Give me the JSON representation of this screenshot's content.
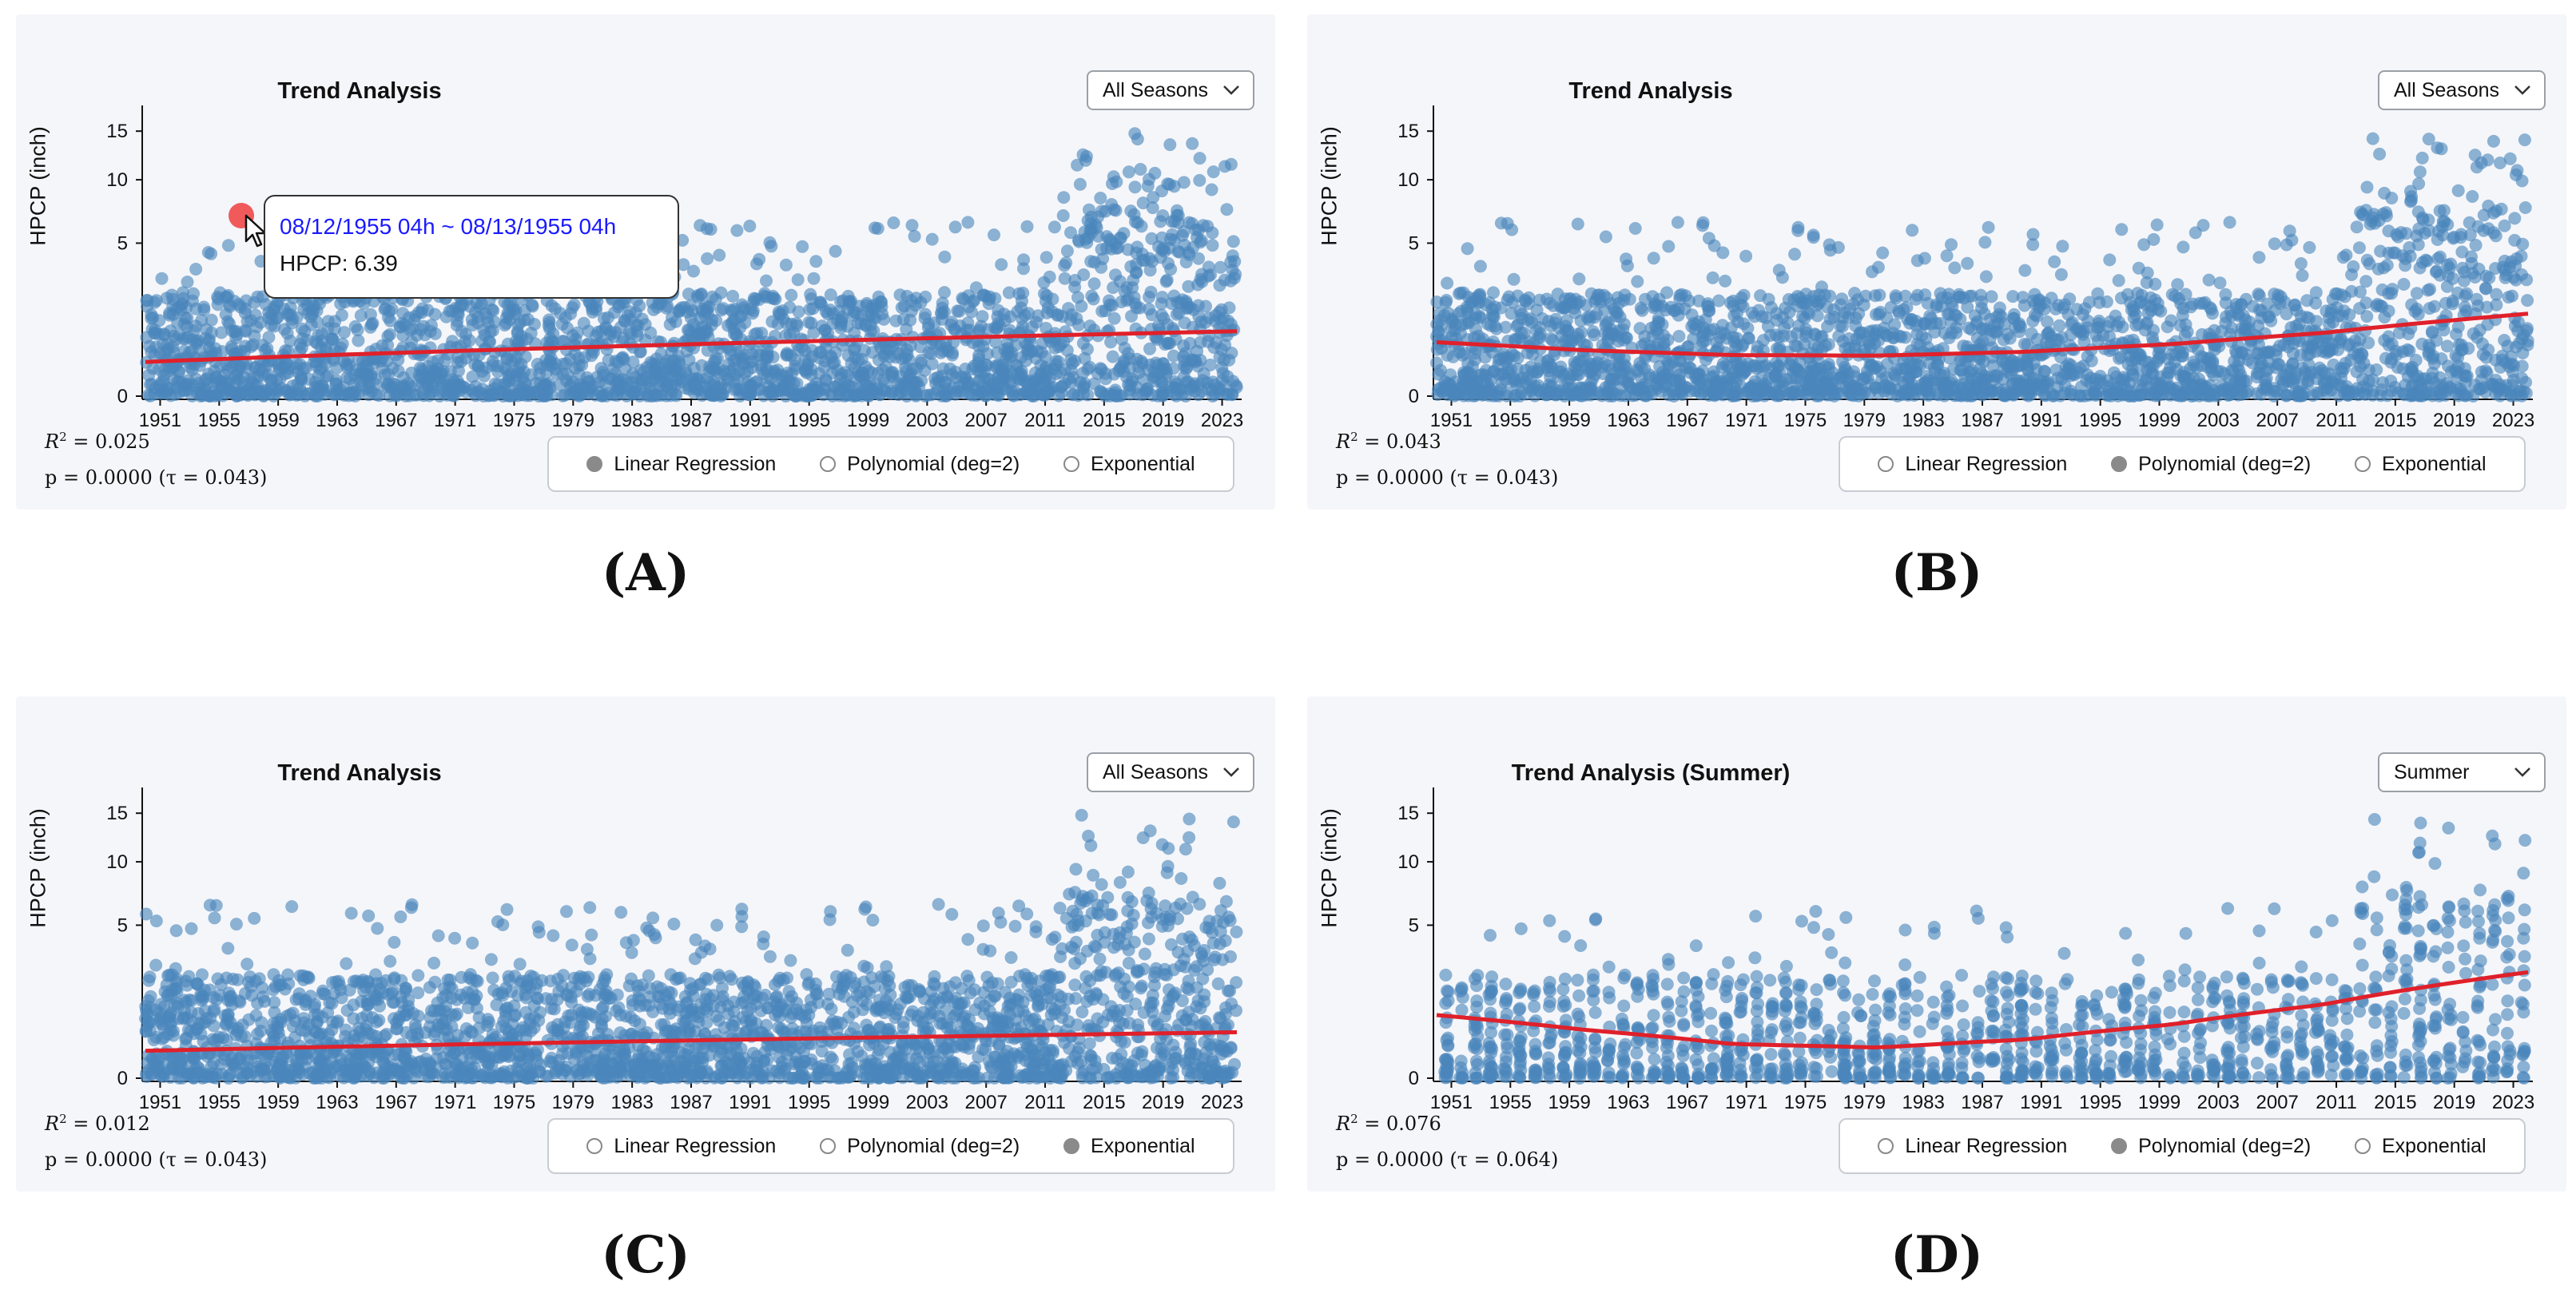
{
  "panels": [
    {
      "caption": "(A)",
      "title": "Trend Analysis",
      "season": "All Seasons",
      "y_label": "HPCP (inch)",
      "r2": "0.025",
      "p_text": "p = 0.0000 (τ = 0.043)",
      "models": [
        {
          "label": "Linear Regression",
          "selected": true
        },
        {
          "label": "Polynomial (deg=2)",
          "selected": false
        },
        {
          "label": "Exponential",
          "selected": false
        }
      ],
      "tooltip": {
        "date": "08/12/1955 04h ~ 08/13/1955 04h",
        "value": "HPCP: 6.39"
      }
    },
    {
      "caption": "(B)",
      "title": "Trend Analysis",
      "season": "All Seasons",
      "y_label": "HPCP (inch)",
      "r2": "0.043",
      "p_text": "p = 0.0000 (τ = 0.043)",
      "models": [
        {
          "label": "Linear Regression",
          "selected": false
        },
        {
          "label": "Polynomial (deg=2)",
          "selected": true
        },
        {
          "label": "Exponential",
          "selected": false
        }
      ]
    },
    {
      "caption": "(C)",
      "title": "Trend Analysis",
      "season": "All Seasons",
      "y_label": "HPCP (inch)",
      "r2": "0.012",
      "p_text": "p = 0.0000 (τ = 0.043)",
      "models": [
        {
          "label": "Linear Regression",
          "selected": false
        },
        {
          "label": "Polynomial (deg=2)",
          "selected": false
        },
        {
          "label": "Exponential",
          "selected": true
        }
      ]
    },
    {
      "caption": "(D)",
      "title": "Trend Analysis (Summer)",
      "season": "Summer",
      "y_label": "HPCP (inch)",
      "r2": "0.076",
      "p_text": "p = 0.0000 (τ = 0.064)",
      "models": [
        {
          "label": "Linear Regression",
          "selected": false
        },
        {
          "label": "Polynomial (deg=2)",
          "selected": true
        },
        {
          "label": "Exponential",
          "selected": false
        }
      ]
    }
  ],
  "chart_data": [
    {
      "type": "scatter",
      "title": "Trend Analysis",
      "xlabel": "",
      "ylabel": "HPCP (inch)",
      "x_ticks": [
        "1951",
        "1955",
        "1959",
        "1963",
        "1967",
        "1971",
        "1975",
        "1979",
        "1983",
        "1987",
        "1991",
        "1995",
        "1999",
        "2003",
        "2007",
        "2011",
        "2015",
        "2019",
        "2023"
      ],
      "y_ticks": [
        0,
        5,
        10,
        15
      ],
      "xlim": [
        1950,
        2024
      ],
      "y_scale": "sqrt",
      "trend": {
        "model": "linear",
        "x": [
          1950,
          2024
        ],
        "y": [
          0.25,
          0.9
        ],
        "color": "#e0202a"
      },
      "highlight": {
        "x": 1955.6,
        "y": 6.39
      },
      "series": [
        {
          "name": "HPCP",
          "color": "#4a86bb"
        }
      ]
    },
    {
      "type": "scatter",
      "title": "Trend Analysis",
      "ylabel": "HPCP (inch)",
      "x_ticks": [
        "1951",
        "1955",
        "1959",
        "1963",
        "1967",
        "1971",
        "1975",
        "1979",
        "1983",
        "1987",
        "1991",
        "1995",
        "1999",
        "2003",
        "2007",
        "2011",
        "2015",
        "2019",
        "2023"
      ],
      "y_ticks": [
        0,
        5,
        10,
        15
      ],
      "xlim": [
        1950,
        2024
      ],
      "y_scale": "sqrt",
      "trend": {
        "model": "polynomial-2",
        "x": [
          1950,
          1960,
          1970,
          1980,
          1990,
          2000,
          2010,
          2024
        ],
        "y": [
          0.62,
          0.45,
          0.36,
          0.35,
          0.42,
          0.58,
          0.85,
          1.45
        ],
        "color": "#e0202a"
      },
      "series": [
        {
          "name": "HPCP",
          "color": "#4a86bb"
        }
      ]
    },
    {
      "type": "scatter",
      "title": "Trend Analysis",
      "ylabel": "HPCP (inch)",
      "x_ticks": [
        "1951",
        "1955",
        "1959",
        "1963",
        "1967",
        "1971",
        "1975",
        "1979",
        "1983",
        "1987",
        "1991",
        "1995",
        "1999",
        "2003",
        "2007",
        "2011",
        "2015",
        "2019",
        "2023"
      ],
      "y_ticks": [
        0,
        5,
        10,
        15
      ],
      "xlim": [
        1950,
        2024
      ],
      "y_scale": "sqrt",
      "trend": {
        "model": "exponential",
        "x": [
          1950,
          2024
        ],
        "y": [
          0.16,
          0.45
        ],
        "color": "#e0202a"
      },
      "series": [
        {
          "name": "HPCP",
          "color": "#4a86bb"
        }
      ]
    },
    {
      "type": "scatter",
      "title": "Trend Analysis (Summer)",
      "ylabel": "HPCP (inch)",
      "x_ticks": [
        "1951",
        "1955",
        "1959",
        "1963",
        "1967",
        "1971",
        "1975",
        "1979",
        "1983",
        "1987",
        "1991",
        "1995",
        "1999",
        "2003",
        "2007",
        "2011",
        "2015",
        "2019",
        "2023"
      ],
      "y_ticks": [
        0,
        5,
        10,
        15
      ],
      "xlim": [
        1950,
        2024
      ],
      "y_scale": "sqrt",
      "trend": {
        "model": "polynomial-2",
        "x": [
          1950,
          1960,
          1970,
          1980,
          1990,
          2000,
          2010,
          2024
        ],
        "y": [
          0.85,
          0.5,
          0.25,
          0.2,
          0.32,
          0.62,
          1.15,
          2.4
        ],
        "color": "#e0202a"
      },
      "series": [
        {
          "name": "HPCP (summer)",
          "color": "#4a86bb"
        }
      ]
    }
  ]
}
